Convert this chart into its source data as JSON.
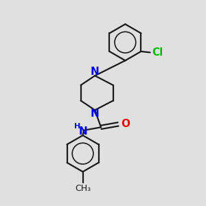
{
  "background_color": "#e0e0e0",
  "bond_color": "#1a1a1a",
  "N_color": "#0000ee",
  "O_color": "#ee0000",
  "Cl_color": "#00bb00",
  "font_size": 10,
  "bond_width": 1.6,
  "figsize": [
    3.0,
    3.0
  ],
  "dpi": 100,
  "xlim": [
    0,
    10
  ],
  "ylim": [
    0,
    10
  ]
}
